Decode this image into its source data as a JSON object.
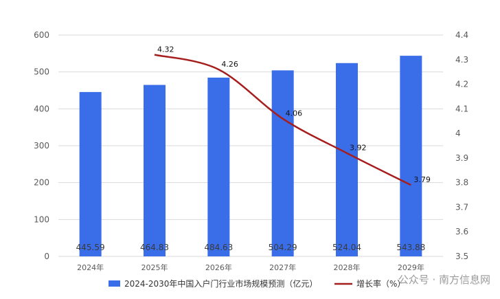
{
  "chart_data": {
    "type": "bar",
    "categories": [
      "2024年",
      "2025年",
      "2026年",
      "2027年",
      "2028年",
      "2029年"
    ],
    "series": [
      {
        "name": "2024-2030年中国入户门行业市场规模预测（亿元）",
        "type": "bar",
        "axis": "left",
        "values": [
          445.59,
          464.83,
          484.63,
          504.29,
          524.04,
          543.88
        ]
      },
      {
        "name": "增长率（%）",
        "type": "line",
        "axis": "right",
        "values": [
          null,
          4.32,
          4.26,
          4.06,
          3.92,
          3.79
        ]
      }
    ],
    "left_axis": {
      "range": [
        0,
        600
      ],
      "ticks": [
        0,
        100,
        200,
        300,
        400,
        500,
        600
      ]
    },
    "right_axis": {
      "range": [
        3.5,
        4.4
      ],
      "ticks": [
        "3.5",
        "3.6",
        "3.7",
        "3.8",
        "3.9",
        "4",
        "4.1",
        "4.2",
        "4.3",
        "4.4"
      ]
    },
    "grid": true,
    "legend_position": "bottom",
    "colors": {
      "bar": "#3a6ee8",
      "line": "#a61d1d",
      "grid": "#d9d9d9"
    }
  },
  "watermark": "公众号 · 南方信息网"
}
